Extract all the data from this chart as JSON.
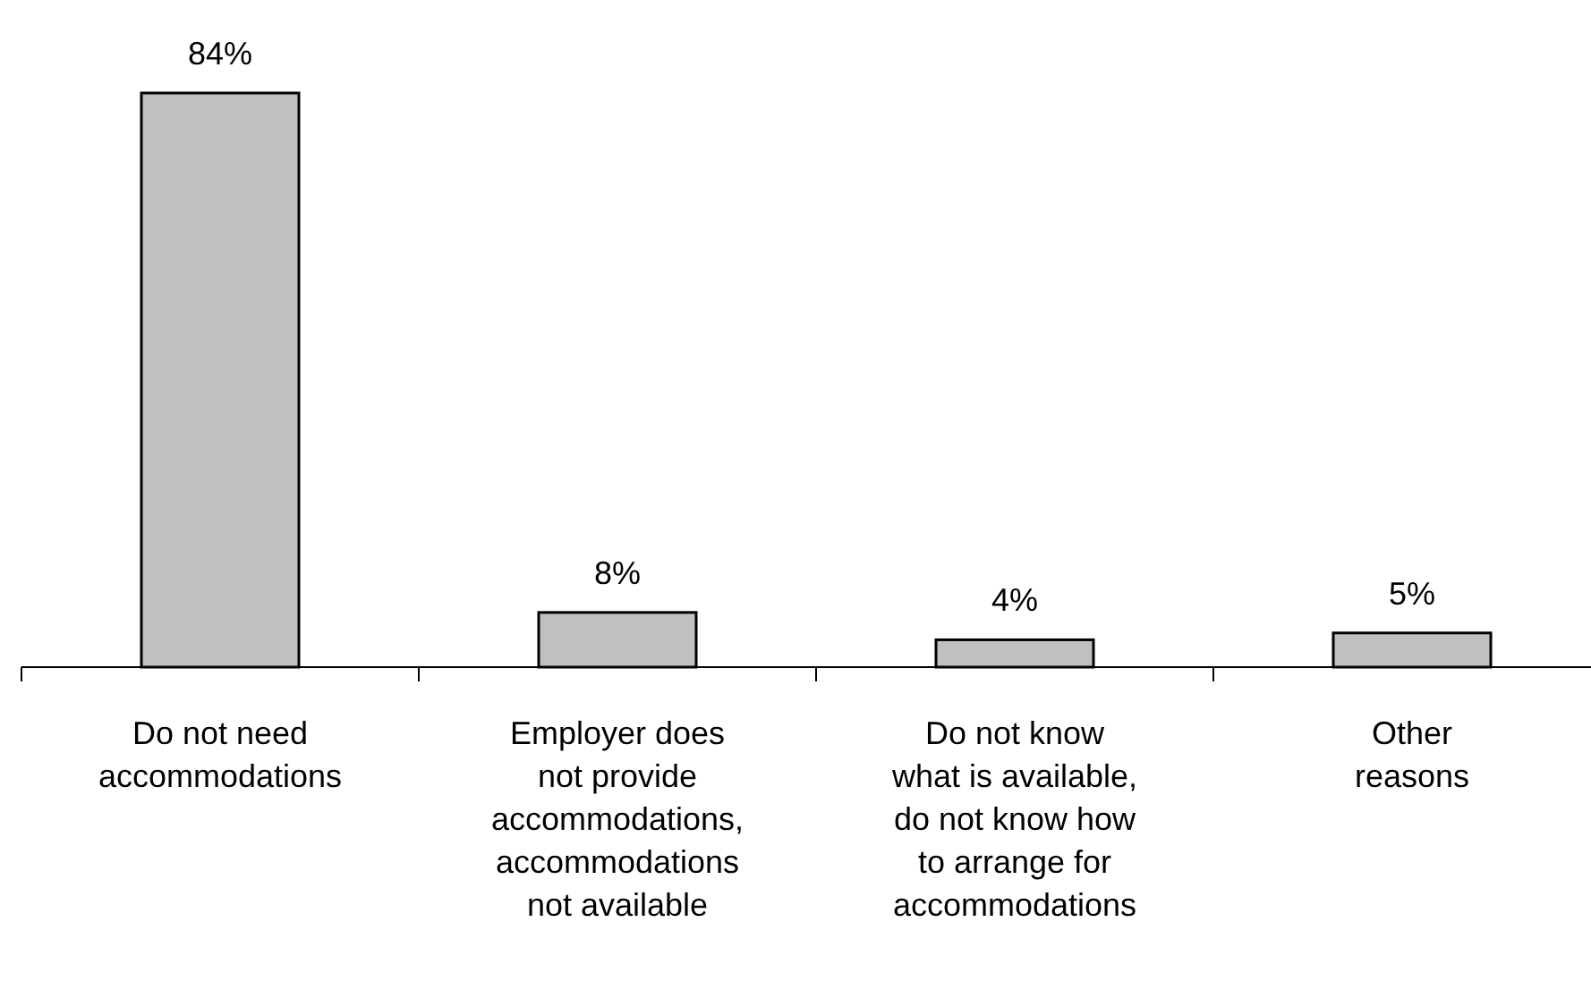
{
  "chart_data": {
    "type": "bar",
    "categories": [
      "Do not need\naccommodations",
      "Employer does\nnot provide\naccommodations,\naccommodations\nnot available",
      "Do not know\nwhat is available,\ndo not know how\nto arrange for\naccommodations",
      "Other\nreasons"
    ],
    "values": [
      84,
      8,
      4,
      5
    ],
    "color": "#c0c0c0",
    "value_labels": [
      "84%",
      "8%",
      "4%",
      "5%"
    ]
  }
}
